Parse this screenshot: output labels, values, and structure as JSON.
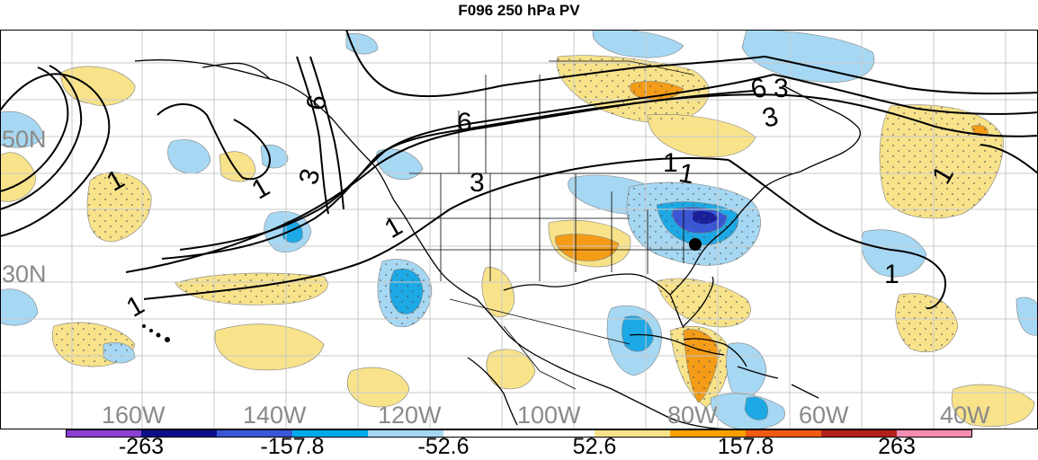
{
  "title": "F096 250 hPa PV",
  "map": {
    "lat_labels": [
      "50N",
      "30N"
    ],
    "lon_labels": [
      "160W",
      "140W",
      "120W",
      "100W",
      "80W",
      "60W",
      "40W"
    ],
    "contour_labels": [
      "6",
      "6",
      "6",
      "3",
      "3",
      "3",
      "3",
      "1",
      "1",
      "1",
      "1",
      "1",
      "1",
      "1",
      "1"
    ],
    "marker": "filled-circle"
  },
  "colorbar": {
    "colors": [
      "#8a3fd1",
      "#0b0f8a",
      "#3a57d6",
      "#00a9ec",
      "#a6d8f3",
      "#ffffff",
      "#ffffff",
      "#f8e38b",
      "#f9a100",
      "#f25a12",
      "#b3201e",
      "#f58cb1"
    ],
    "labels": [
      "-263",
      "-157.8",
      "-52.6",
      "52.6",
      "157.8",
      "263"
    ]
  },
  "colors": {
    "light_blue": "#a6d8f3",
    "mid_blue": "#1ca9e6",
    "dark_blue": "#3a57d6",
    "deep_blue": "#1b1f9a",
    "light_yellow": "#f8e38b",
    "orange": "#f49c17",
    "grid": "#c8c8c8",
    "label_gray": "#8a8a8a"
  }
}
